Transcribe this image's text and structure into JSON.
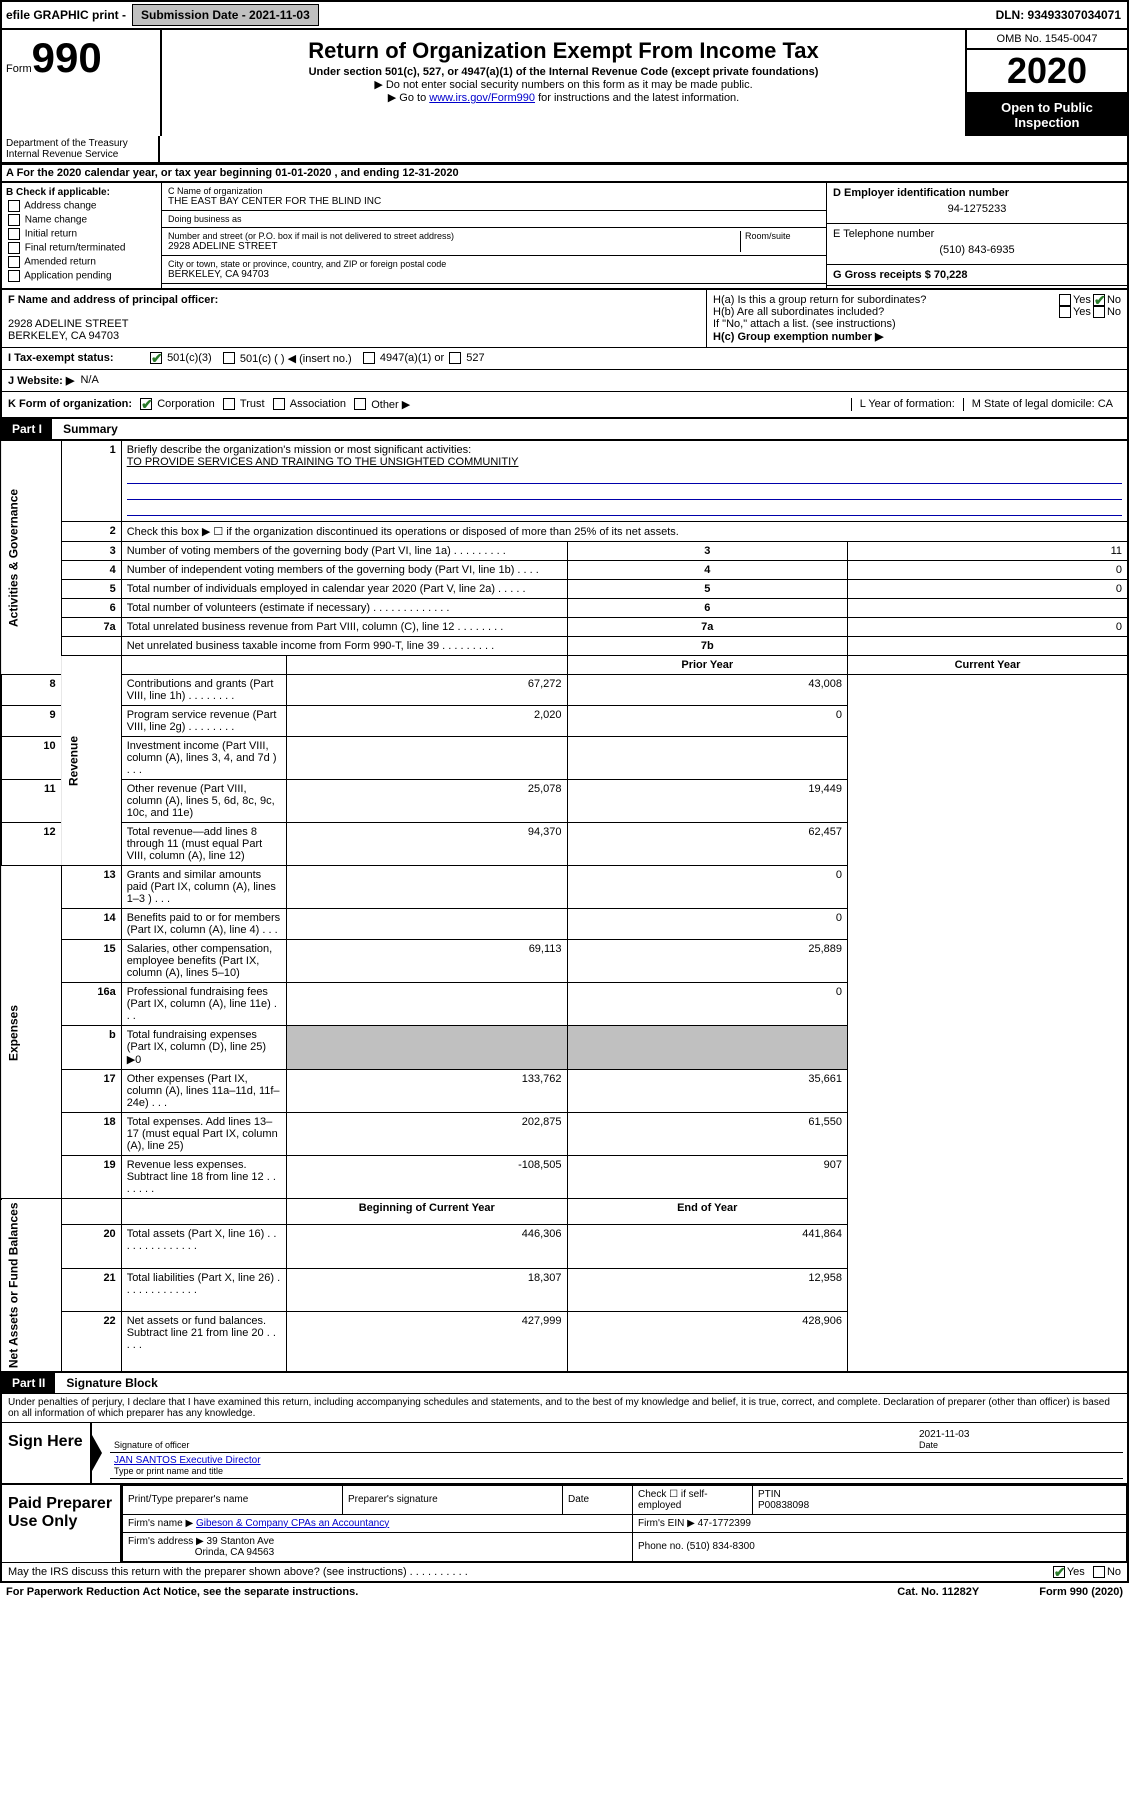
{
  "topbar": {
    "efile_label": "efile GRAPHIC print - ",
    "submission_label": "Submission Date - 2021-11-03",
    "dln_label": "DLN: 93493307034071"
  },
  "header": {
    "form_label": "Form",
    "form_number": "990",
    "dept": "Department of the Treasury\nInternal Revenue Service",
    "title": "Return of Organization Exempt From Income Tax",
    "subtitle": "Under section 501(c), 527, or 4947(a)(1) of the Internal Revenue Code (except private foundations)",
    "note1": "▶ Do not enter social security numbers on this form as it may be made public.",
    "note2_pre": "▶ Go to ",
    "note2_link": "www.irs.gov/Form990",
    "note2_post": " for instructions and the latest information.",
    "omb": "OMB No. 1545-0047",
    "year": "2020",
    "inspection": "Open to Public Inspection"
  },
  "row_a": "A For the 2020 calendar year, or tax year beginning 01-01-2020    , and ending 12-31-2020",
  "section_b": {
    "header": "B Check if applicable:",
    "items": [
      "Address change",
      "Name change",
      "Initial return",
      "Final return/terminated",
      "Amended return",
      "Application pending"
    ]
  },
  "section_c": {
    "name_lbl": "C Name of organization",
    "name": "THE EAST BAY CENTER FOR THE BLIND INC",
    "dba_lbl": "Doing business as",
    "dba": "",
    "street_lbl": "Number and street (or P.O. box if mail is not delivered to street address)",
    "room_lbl": "Room/suite",
    "street": "2928 ADELINE STREET",
    "city_lbl": "City or town, state or province, country, and ZIP or foreign postal code",
    "city": "BERKELEY, CA  94703"
  },
  "section_d": {
    "ein_lbl": "D Employer identification number",
    "ein": "94-1275233",
    "phone_lbl": "E Telephone number",
    "phone": "(510) 843-6935",
    "gross_lbl": "G Gross receipts $ 70,228"
  },
  "section_f": {
    "lbl": "F  Name and address of principal officer:",
    "addr1": "2928 ADELINE STREET",
    "addr2": "BERKELEY, CA  94703"
  },
  "section_h": {
    "ha": "H(a)  Is this a group return for subordinates?",
    "hb": "H(b)  Are all subordinates included?",
    "hb_note": "If \"No,\" attach a list. (see instructions)",
    "hc": "H(c)  Group exemption number ▶",
    "yes": "Yes",
    "no": "No"
  },
  "row_i": {
    "lbl": "I   Tax-exempt status:",
    "opts": [
      "501(c)(3)",
      "501(c) (  ) ◀ (insert no.)",
      "4947(a)(1) or",
      "527"
    ]
  },
  "row_j": {
    "lbl": "J   Website: ▶",
    "val": "N/A"
  },
  "row_k": {
    "lbl": "K Form of organization:",
    "opts": [
      "Corporation",
      "Trust",
      "Association",
      "Other ▶"
    ],
    "l_lbl": "L Year of formation:",
    "m_lbl": "M State of legal domicile: CA"
  },
  "part1": {
    "hdr": "Part I",
    "title": "Summary",
    "q1": "Briefly describe the organization's mission or most significant activities:",
    "mission": "TO PROVIDE SERVICES AND TRAINING TO THE UNSIGHTED COMMUNITIY",
    "q2": "Check this box ▶ ☐  if the organization discontinued its operations or disposed of more than 25% of its net assets.",
    "sections": [
      {
        "label": "Activities & Governance",
        "rows": [
          {
            "n": "3",
            "d": "Number of voting members of the governing body (Part VI, line 1a)  .   .   .   .   .   .   .   .   .",
            "p": "3",
            "v1": "",
            "v2": "11",
            "single": true
          },
          {
            "n": "4",
            "d": "Number of independent voting members of the governing body (Part VI, line 1b)   .   .   .   .",
            "p": "4",
            "v1": "",
            "v2": "0",
            "single": true
          },
          {
            "n": "5",
            "d": "Total number of individuals employed in calendar year 2020 (Part V, line 2a)   .   .   .   .   .",
            "p": "5",
            "v1": "",
            "v2": "0",
            "single": true
          },
          {
            "n": "6",
            "d": "Total number of volunteers (estimate if necessary)   .   .   .   .   .   .   .   .   .   .   .   .   .",
            "p": "6",
            "v1": "",
            "v2": "",
            "single": true
          },
          {
            "n": "7a",
            "d": "Total unrelated business revenue from Part VIII, column (C), line 12   .   .   .   .   .   .   .   .",
            "p": "7a",
            "v1": "",
            "v2": "0",
            "single": true
          },
          {
            "n": "",
            "d": "Net unrelated business taxable income from Form 990-T, line 39   .   .   .   .   .   .   .   .   .",
            "p": "7b",
            "v1": "",
            "v2": "",
            "single": true
          }
        ]
      },
      {
        "label": "Revenue",
        "header": {
          "v1": "Prior Year",
          "v2": "Current Year"
        },
        "rows": [
          {
            "n": "8",
            "d": "Contributions and grants (Part VIII, line 1h)   .   .   .   .   .   .   .   .",
            "p": "",
            "v1": "67,272",
            "v2": "43,008"
          },
          {
            "n": "9",
            "d": "Program service revenue (Part VIII, line 2g)   .   .   .   .   .   .   .   .",
            "p": "",
            "v1": "2,020",
            "v2": "0"
          },
          {
            "n": "10",
            "d": "Investment income (Part VIII, column (A), lines 3, 4, and 7d )   .   .   .",
            "p": "",
            "v1": "",
            "v2": ""
          },
          {
            "n": "11",
            "d": "Other revenue (Part VIII, column (A), lines 5, 6d, 8c, 9c, 10c, and 11e)",
            "p": "",
            "v1": "25,078",
            "v2": "19,449"
          },
          {
            "n": "12",
            "d": "Total revenue—add lines 8 through 11 (must equal Part VIII, column (A), line 12)",
            "p": "",
            "v1": "94,370",
            "v2": "62,457"
          }
        ]
      },
      {
        "label": "Expenses",
        "rows": [
          {
            "n": "13",
            "d": "Grants and similar amounts paid (Part IX, column (A), lines 1–3 )   .   .   .",
            "p": "",
            "v1": "",
            "v2": "0"
          },
          {
            "n": "14",
            "d": "Benefits paid to or for members (Part IX, column (A), line 4)   .   .   .",
            "p": "",
            "v1": "",
            "v2": "0"
          },
          {
            "n": "15",
            "d": "Salaries, other compensation, employee benefits (Part IX, column (A), lines 5–10)",
            "p": "",
            "v1": "69,113",
            "v2": "25,889"
          },
          {
            "n": "16a",
            "d": "Professional fundraising fees (Part IX, column (A), line 11e)   .   .   .",
            "p": "",
            "v1": "",
            "v2": "0"
          },
          {
            "n": "b",
            "d": "Total fundraising expenses (Part IX, column (D), line 25) ▶0",
            "p": "",
            "v1": "",
            "v2": "",
            "shade": true
          },
          {
            "n": "17",
            "d": "Other expenses (Part IX, column (A), lines 11a–11d, 11f–24e)   .   .   .",
            "p": "",
            "v1": "133,762",
            "v2": "35,661"
          },
          {
            "n": "18",
            "d": "Total expenses. Add lines 13–17 (must equal Part IX, column (A), line 25)",
            "p": "",
            "v1": "202,875",
            "v2": "61,550"
          },
          {
            "n": "19",
            "d": "Revenue less expenses. Subtract line 18 from line 12   .   .   .   .   .   .   .",
            "p": "",
            "v1": "-108,505",
            "v2": "907"
          }
        ]
      },
      {
        "label": "Net Assets or Fund Balances",
        "header": {
          "v1": "Beginning of Current Year",
          "v2": "End of Year"
        },
        "rows": [
          {
            "n": "20",
            "d": "Total assets (Part X, line 16)   .   .   .   .   .   .   .   .   .   .   .   .   .   .",
            "p": "",
            "v1": "446,306",
            "v2": "441,864"
          },
          {
            "n": "21",
            "d": "Total liabilities (Part X, line 26)   .   .   .   .   .   .   .   .   .   .   .   .   .",
            "p": "",
            "v1": "18,307",
            "v2": "12,958"
          },
          {
            "n": "22",
            "d": "Net assets or fund balances. Subtract line 21 from line 20   .   .   .   .   .",
            "p": "",
            "v1": "427,999",
            "v2": "428,906"
          }
        ]
      }
    ]
  },
  "part2": {
    "hdr": "Part II",
    "title": "Signature Block",
    "penalties": "Under penalties of perjury, I declare that I have examined this return, including accompanying schedules and statements, and to the best of my knowledge and belief, it is true, correct, and complete. Declaration of preparer (other than officer) is based on all information of which preparer has any knowledge."
  },
  "sign": {
    "label": "Sign Here",
    "sig_lbl": "Signature of officer",
    "date_lbl": "Date",
    "date": "2021-11-03",
    "name": "JAN SANTOS Executive Director",
    "name_lbl": "Type or print name and title"
  },
  "preparer": {
    "label": "Paid Preparer Use Only",
    "name_lbl": "Print/Type preparer's name",
    "sig_lbl": "Preparer's signature",
    "date_lbl": "Date",
    "check_lbl": "Check ☐ if self-employed",
    "ptin_lbl": "PTIN",
    "ptin": "P00838098",
    "firm_name_lbl": "Firm's name    ▶",
    "firm_name": "Gibeson & Company CPAs an Accountancy",
    "firm_ein_lbl": "Firm's EIN ▶",
    "firm_ein": "47-1772399",
    "firm_addr_lbl": "Firm's address ▶",
    "firm_addr1": "39 Stanton Ave",
    "firm_addr2": "Orinda, CA  94563",
    "phone_lbl": "Phone no.",
    "phone": "(510) 834-8300"
  },
  "footer": {
    "discuss": "May the IRS discuss this return with the preparer shown above? (see instructions)   .   .   .   .   .   .   .   .   .   .",
    "yes": "Yes",
    "no": "No",
    "paperwork": "For Paperwork Reduction Act Notice, see the separate instructions.",
    "cat": "Cat. No. 11282Y",
    "form": "Form 990 (2020)"
  }
}
